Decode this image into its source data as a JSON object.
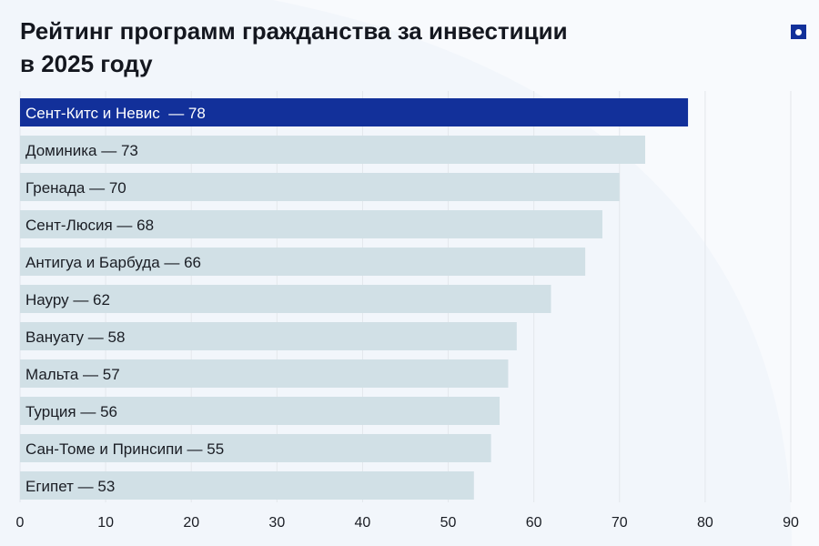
{
  "header": {
    "title_line1": "Рейтинг программ гражданства за инвестиции",
    "title_line2": "в 2025 году"
  },
  "logo": {
    "icon": "brand-square-dot-icon"
  },
  "colors": {
    "highlight": "#12309a",
    "bar": "#d1e0e6",
    "grid": "#e3e7ec",
    "text": "#1a1d24"
  },
  "chart_data": {
    "type": "bar",
    "orientation": "horizontal",
    "title": "Рейтинг программ гражданства за инвестиции в 2025 году",
    "categories": [
      "Сент-Китс и Невис",
      "Доминика",
      "Гренада",
      "Сент-Люсия",
      "Антигуа и Барбуда",
      "Науру",
      "Вануату",
      "Мальта",
      "Турция",
      "Сан-Томе и Принсипи",
      "Египет"
    ],
    "values": [
      78,
      73,
      70,
      68,
      66,
      62,
      58,
      57,
      56,
      55,
      53
    ],
    "labels": [
      "Сент-Китс и Невис  — 78",
      "Доминика — 73",
      "Гренада — 70",
      "Сент-Люсия — 68",
      "Антигуа и Барбуда — 66",
      "Науру — 62",
      "Вануату — 58",
      "Мальта — 57",
      "Турция — 56",
      "Сан-Томе и Принсипи — 55",
      "Египет — 53"
    ],
    "highlighted_index": 0,
    "xlim": [
      0,
      90
    ],
    "xticks": [
      "0",
      "10",
      "20",
      "30",
      "40",
      "50",
      "60",
      "70",
      "80",
      "90"
    ],
    "grid": true,
    "xlabel": "",
    "ylabel": ""
  }
}
